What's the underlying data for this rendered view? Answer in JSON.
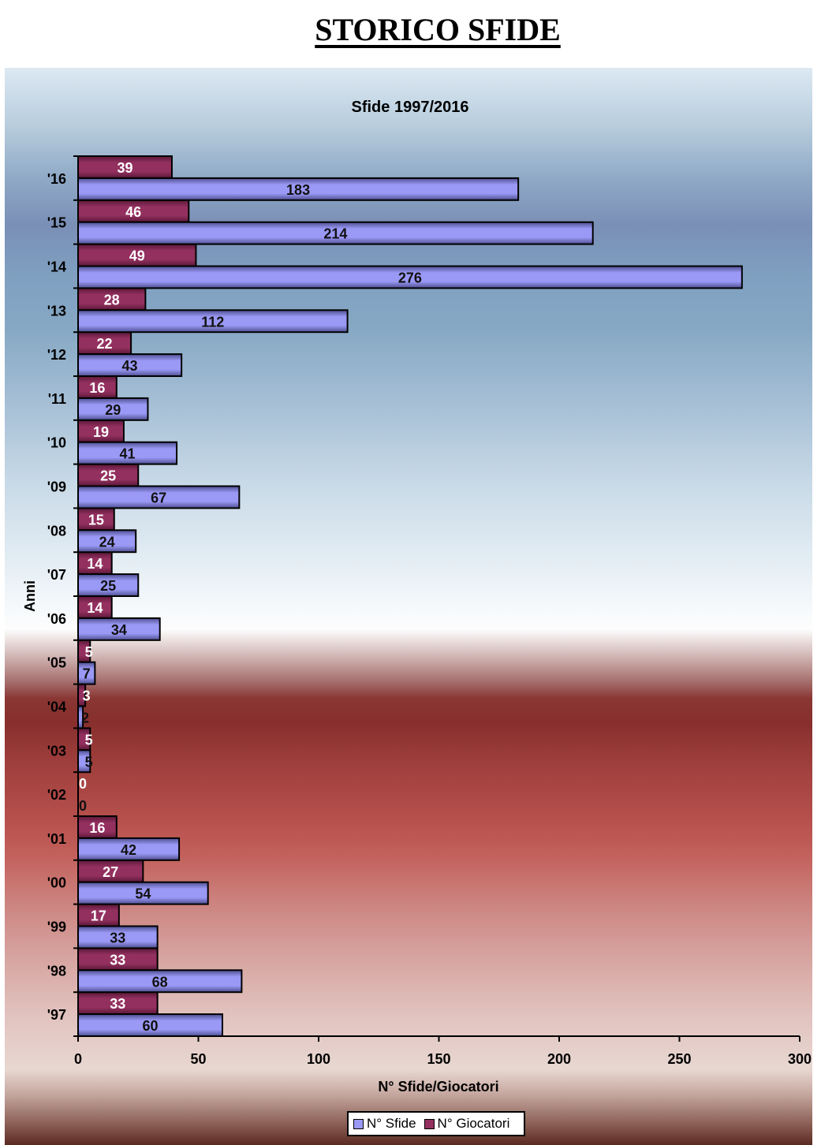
{
  "page": {
    "title": "STORICO SFIDE"
  },
  "colors": {
    "sfide": "#9a99f5",
    "sfide_dark": "#4a4a8c",
    "giocatori": "#93305f",
    "giocatori_dark": "#5a1838"
  },
  "legend": {
    "items": [
      {
        "label": "N° Sfide",
        "color": "#9a99f5"
      },
      {
        "label": "N° Giocatori",
        "color": "#93305f"
      }
    ],
    "placement": "bottom"
  },
  "chart_data": {
    "type": "bar",
    "orientation": "horizontal",
    "title": "Sfide 1997/2016",
    "xlabel": "N° Sfide/Giocatori",
    "ylabel": "Anni",
    "xlim": [
      0,
      300
    ],
    "xticks": [
      0,
      50,
      100,
      150,
      200,
      250,
      300
    ],
    "grid": false,
    "categories": [
      "'97",
      "'98",
      "'99",
      "'00",
      "'01",
      "'02",
      "'03",
      "'04",
      "'05",
      "'06",
      "'07",
      "'08",
      "'09",
      "'10",
      "'11",
      "'12",
      "'13",
      "'14",
      "'15",
      "'16"
    ],
    "series": [
      {
        "name": "N° Sfide",
        "values": [
          60,
          68,
          33,
          54,
          42,
          0,
          5,
          2,
          7,
          34,
          25,
          24,
          67,
          41,
          29,
          43,
          112,
          276,
          214,
          183
        ]
      },
      {
        "name": "N° Giocatori",
        "values": [
          33,
          33,
          17,
          27,
          16,
          0,
          5,
          3,
          5,
          14,
          14,
          15,
          25,
          19,
          16,
          22,
          28,
          49,
          46,
          39
        ]
      }
    ],
    "legend": [
      "N° Sfide",
      "N° Giocatori"
    ]
  }
}
